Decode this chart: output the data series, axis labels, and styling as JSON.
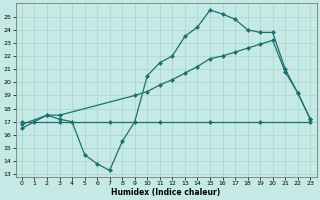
{
  "xlabel": "Humidex (Indice chaleur)",
  "xlim": [
    -0.5,
    23.5
  ],
  "ylim": [
    12.8,
    26.0
  ],
  "yticks": [
    13,
    14,
    15,
    16,
    17,
    18,
    19,
    20,
    21,
    22,
    23,
    24,
    25
  ],
  "xticks": [
    0,
    1,
    2,
    3,
    4,
    5,
    6,
    7,
    8,
    9,
    10,
    11,
    12,
    13,
    14,
    15,
    16,
    17,
    18,
    19,
    20,
    21,
    22,
    23
  ],
  "bg_color": "#c5eae6",
  "grid_color": "#aad4cf",
  "line_color": "#1d7070",
  "line1_x": [
    0,
    3,
    7,
    11,
    15,
    19,
    23
  ],
  "line1_y": [
    17.0,
    17.0,
    17.0,
    17.0,
    17.0,
    17.0,
    17.0
  ],
  "line2_x": [
    0,
    2,
    3,
    9,
    10,
    11,
    12,
    13,
    14,
    15,
    16,
    17,
    18,
    19,
    20,
    21,
    22,
    23
  ],
  "line2_y": [
    16.8,
    17.5,
    17.5,
    19.0,
    19.3,
    19.8,
    20.2,
    20.7,
    21.2,
    21.8,
    22.0,
    22.3,
    22.6,
    22.9,
    23.2,
    20.8,
    19.2,
    17.2
  ],
  "line3_x": [
    0,
    1,
    2,
    3,
    4,
    5,
    6,
    7,
    8,
    9,
    10,
    11,
    12,
    13,
    14,
    15,
    16,
    17,
    18,
    19,
    20,
    21,
    22,
    23
  ],
  "line3_y": [
    16.5,
    17.0,
    17.5,
    17.2,
    17.0,
    14.5,
    13.8,
    13.3,
    15.5,
    17.0,
    20.5,
    21.5,
    22.0,
    23.5,
    24.2,
    25.5,
    25.2,
    24.8,
    24.0,
    23.8,
    23.8,
    21.0,
    19.2,
    17.2
  ]
}
